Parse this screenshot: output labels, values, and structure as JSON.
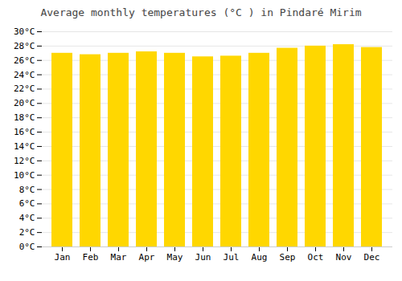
{
  "chart_data": {
    "type": "bar",
    "title": "Average monthly temperatures (°C ) in Pindaré Mirim",
    "categories": [
      "Jan",
      "Feb",
      "Mar",
      "Apr",
      "May",
      "Jun",
      "Jul",
      "Aug",
      "Sep",
      "Oct",
      "Nov",
      "Dec"
    ],
    "values": [
      27.0,
      26.8,
      27.0,
      27.2,
      27.0,
      26.5,
      26.6,
      27.0,
      27.7,
      28.0,
      28.2,
      27.8
    ],
    "color": "#FFD700",
    "ylim": [
      0,
      30
    ],
    "yticks": [
      {
        "value": 0,
        "label": "0°C"
      },
      {
        "value": 2,
        "label": "2°C"
      },
      {
        "value": 4,
        "label": "4°C"
      },
      {
        "value": 6,
        "label": "6°C"
      },
      {
        "value": 8,
        "label": "8°C"
      },
      {
        "value": 10,
        "label": "10°C"
      },
      {
        "value": 12,
        "label": "12°C"
      },
      {
        "value": 14,
        "label": "14°C"
      },
      {
        "value": 16,
        "label": "16°C"
      },
      {
        "value": 18,
        "label": "18°C"
      },
      {
        "value": 20,
        "label": "20°C"
      },
      {
        "value": 22,
        "label": "22°C"
      },
      {
        "value": 24,
        "label": "24°C"
      },
      {
        "value": 26,
        "label": "26°C"
      },
      {
        "value": 28,
        "label": "28°C"
      },
      {
        "value": 30,
        "label": "30°C"
      }
    ],
    "grid": true
  }
}
